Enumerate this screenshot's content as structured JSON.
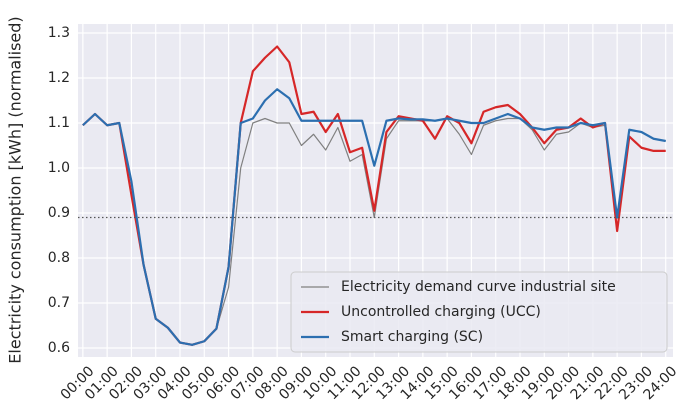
{
  "chart_data": {
    "type": "line",
    "y_label": "Electricity consumption [kWh] (normalised)",
    "x": [
      0,
      0.5,
      1,
      1.5,
      2,
      2.5,
      3,
      3.5,
      4,
      4.5,
      5,
      5.5,
      6,
      6.5,
      7,
      7.5,
      8,
      8.5,
      9,
      9.5,
      10,
      10.5,
      11,
      11.5,
      12,
      12.5,
      13,
      13.5,
      14,
      14.5,
      15,
      15.5,
      16,
      16.5,
      17,
      17.5,
      18,
      18.5,
      19,
      19.5,
      20,
      20.5,
      21,
      21.5,
      22,
      22.5,
      23,
      23.5,
      24
    ],
    "series": [
      {
        "name": "Electricity demand curve industrial site",
        "color": "#808080",
        "width": 1.2,
        "values": [
          1.095,
          1.12,
          1.095,
          1.1,
          0.97,
          0.785,
          0.665,
          0.645,
          0.612,
          0.607,
          0.615,
          0.643,
          0.735,
          1.0,
          1.1,
          1.11,
          1.1,
          1.1,
          1.05,
          1.075,
          1.04,
          1.09,
          1.015,
          1.03,
          0.89,
          1.065,
          1.105,
          1.105,
          1.105,
          1.105,
          1.11,
          1.075,
          1.03,
          1.095,
          1.105,
          1.11,
          1.11,
          1.085,
          1.04,
          1.075,
          1.08,
          1.1,
          1.09,
          1.095,
          0.89,
          1.085,
          1.08,
          1.065,
          1.06
        ]
      },
      {
        "name": "Uncontrolled charging (UCC)",
        "color": "#d62728",
        "width": 2.2,
        "values": [
          1.095,
          1.12,
          1.095,
          1.1,
          0.94,
          0.785,
          0.665,
          0.645,
          0.612,
          0.607,
          0.615,
          0.643,
          0.78,
          1.1,
          1.215,
          1.245,
          1.27,
          1.235,
          1.12,
          1.125,
          1.08,
          1.12,
          1.035,
          1.045,
          0.905,
          1.08,
          1.115,
          1.11,
          1.105,
          1.065,
          1.115,
          1.1,
          1.055,
          1.125,
          1.135,
          1.14,
          1.12,
          1.09,
          1.055,
          1.085,
          1.09,
          1.11,
          1.09,
          1.1,
          0.86,
          1.07,
          1.045,
          1.038,
          1.038
        ]
      },
      {
        "name": "Smart charging (SC)",
        "color": "#2c6fb0",
        "width": 2.2,
        "values": [
          1.095,
          1.12,
          1.095,
          1.1,
          0.97,
          0.785,
          0.665,
          0.645,
          0.612,
          0.607,
          0.615,
          0.643,
          0.78,
          1.1,
          1.11,
          1.15,
          1.175,
          1.155,
          1.105,
          1.105,
          1.105,
          1.105,
          1.105,
          1.105,
          1.005,
          1.105,
          1.11,
          1.108,
          1.108,
          1.105,
          1.11,
          1.105,
          1.1,
          1.1,
          1.11,
          1.12,
          1.11,
          1.09,
          1.085,
          1.09,
          1.09,
          1.1,
          1.095,
          1.1,
          0.89,
          1.085,
          1.08,
          1.065,
          1.06
        ]
      }
    ],
    "hline": 0.89,
    "hline_color": "#555555",
    "xlim": [
      -0.2,
      24.3
    ],
    "ylim": [
      0.58,
      1.32
    ],
    "xticks": [
      {
        "value": 0,
        "label": "00:00"
      },
      {
        "value": 1,
        "label": "01:00"
      },
      {
        "value": 2,
        "label": "02:00"
      },
      {
        "value": 3,
        "label": "03:00"
      },
      {
        "value": 4,
        "label": "04:00"
      },
      {
        "value": 5,
        "label": "05:00"
      },
      {
        "value": 6,
        "label": "06:00"
      },
      {
        "value": 7,
        "label": "07:00"
      },
      {
        "value": 8,
        "label": "08:00"
      },
      {
        "value": 9,
        "label": "09:00"
      },
      {
        "value": 10,
        "label": "10:00"
      },
      {
        "value": 11,
        "label": "11:00"
      },
      {
        "value": 12,
        "label": "12:00"
      },
      {
        "value": 13,
        "label": "13:00"
      },
      {
        "value": 14,
        "label": "14:00"
      },
      {
        "value": 15,
        "label": "15:00"
      },
      {
        "value": 16,
        "label": "16:00"
      },
      {
        "value": 17,
        "label": "17:00"
      },
      {
        "value": 18,
        "label": "18:00"
      },
      {
        "value": 19,
        "label": "19:00"
      },
      {
        "value": 20,
        "label": "20:00"
      },
      {
        "value": 21,
        "label": "21:00"
      },
      {
        "value": 22,
        "label": "22:00"
      },
      {
        "value": 23,
        "label": "23:00"
      },
      {
        "value": 24,
        "label": "24:00"
      }
    ],
    "yticks": [
      {
        "value": 0.6,
        "label": "0.6"
      },
      {
        "value": 0.7,
        "label": "0.7"
      },
      {
        "value": 0.8,
        "label": "0.8"
      },
      {
        "value": 0.9,
        "label": "0.9"
      },
      {
        "value": 1.0,
        "label": "1.0"
      },
      {
        "value": 1.1,
        "label": "1.1"
      },
      {
        "value": 1.2,
        "label": "1.2"
      },
      {
        "value": 1.3,
        "label": "1.3"
      }
    ],
    "grid": true,
    "legend": "lower right"
  }
}
